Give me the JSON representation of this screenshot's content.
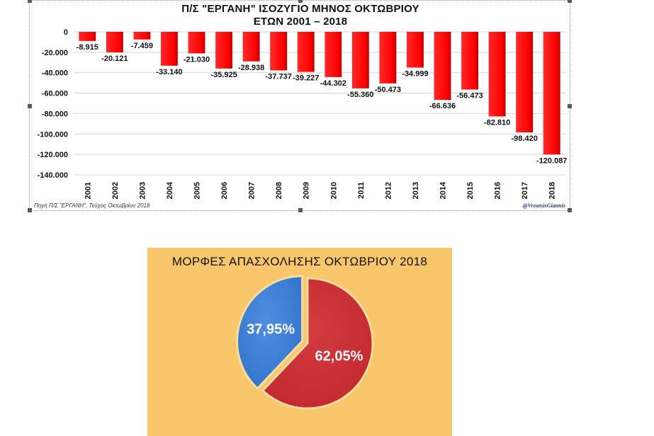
{
  "chart_data": [
    {
      "type": "bar",
      "title": "Π/Σ \"ΕΡΓΑΝΗ\" ΙΣΟΖΥΓΙΟ ΜΗΝΟΣ ΟΚΤΩΒΡΙΟΥ",
      "subtitle": "ΕΤΩΝ 2001 – 2018",
      "xlabel": "",
      "ylabel": "",
      "categories": [
        "2001",
        "2002",
        "2003",
        "2004",
        "2005",
        "2006",
        "2007",
        "2008",
        "2009",
        "2010",
        "2011",
        "2012",
        "2013",
        "2014",
        "2015",
        "2016",
        "2017",
        "2018"
      ],
      "values": [
        -8915,
        -20121,
        -7459,
        -33140,
        -21030,
        -35925,
        -28938,
        -37737,
        -39227,
        -44302,
        -55360,
        -50473,
        -34999,
        -66636,
        -56473,
        -82810,
        -98420,
        -120087
      ],
      "data_labels": [
        "-8.915",
        "-20.121",
        "-7.459",
        "-33.140",
        "-21.030",
        "-35.925",
        "-28.938",
        "-37.737",
        "-39.227",
        "-44.302",
        "-55.360",
        "-50.473",
        "-34.999",
        "-66.636",
        "-56.473",
        "-82.810",
        "-98.420",
        "-120.087"
      ],
      "ylim": [
        -140000,
        0
      ],
      "yticks": [
        0,
        -20000,
        -40000,
        -60000,
        -80000,
        -100000,
        -120000,
        -140000
      ],
      "ytick_labels": [
        "0",
        "-20.000",
        "-40.000",
        "-60.000",
        "-80.000",
        "-100.000",
        "-120.000",
        "-140.000"
      ],
      "grid": true,
      "bar_color": "#ff0000",
      "source_note": "Πηγή Π/Σ \"ΕΡΓΑΝΗ\", Τεύχος Οκτωβρίου 2018",
      "author": "@VroutsisGiannis"
    },
    {
      "type": "pie",
      "title": "ΜΟΡΦΕΣ ΑΠΑΣΧΟΛΗΣΗΣ ΟΚΤΩΒΡΙΟΥ 2018",
      "slices": [
        {
          "value": 62.05,
          "label": "62,05%",
          "color": "#c0272d"
        },
        {
          "value": 37.95,
          "label": "37,95%",
          "color": "#2f6fc9"
        }
      ],
      "background": "#f9c76b"
    }
  ]
}
